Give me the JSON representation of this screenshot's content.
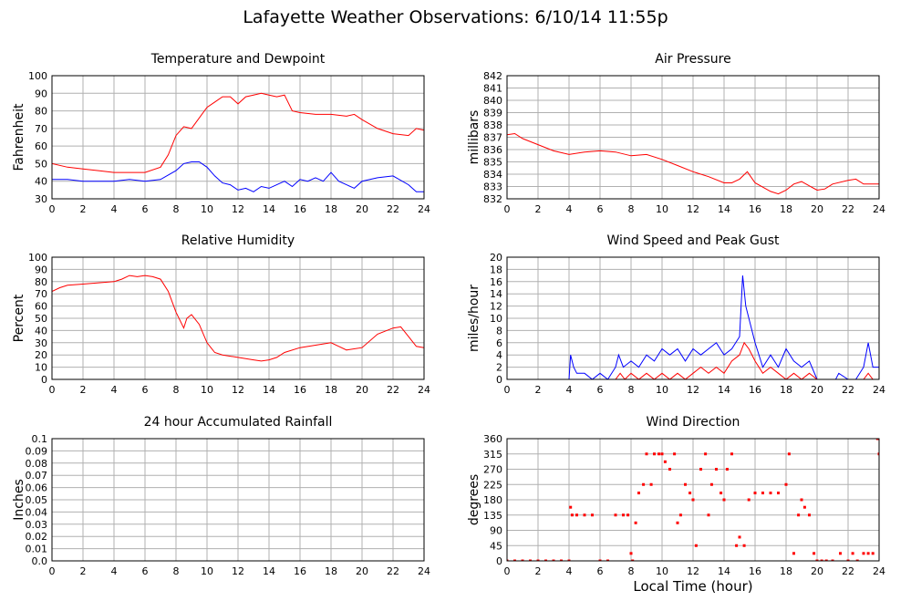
{
  "title": "Lafayette Weather Observations: 6/10/14 11:55p",
  "x_axis_title": "Local Time (hour)",
  "colors": {
    "red": "#ff0000",
    "blue": "#0000ff",
    "grid": "#b0b0b0",
    "axis": "#000000"
  },
  "chart_data": [
    {
      "id": "temp",
      "type": "line",
      "title": "Temperature and Dewpoint",
      "ylabel": "Fahrenheit",
      "xlim": [
        0,
        24
      ],
      "ylim": [
        30,
        100
      ],
      "xticks": [
        "0",
        "2",
        "4",
        "6",
        "8",
        "10",
        "12",
        "14",
        "16",
        "18",
        "20",
        "22",
        "24"
      ],
      "yticks": [
        "30",
        "40",
        "50",
        "60",
        "70",
        "80",
        "90",
        "100"
      ],
      "grid": true,
      "series": [
        {
          "color": "red",
          "x": [
            0,
            1,
            2,
            3,
            4,
            5,
            6,
            7,
            7.5,
            8,
            8.5,
            9,
            9.5,
            10,
            10.5,
            11,
            11.5,
            12,
            12.5,
            13,
            13.5,
            14,
            14.5,
            15,
            15.5,
            16,
            17,
            18,
            19,
            19.5,
            20,
            21,
            22,
            23,
            23.5,
            24
          ],
          "y": [
            50,
            48,
            47,
            46,
            45,
            45,
            45,
            48,
            55,
            66,
            71,
            70,
            76,
            82,
            85,
            88,
            88,
            84,
            88,
            89,
            90,
            89,
            88,
            89,
            80,
            79,
            78,
            78,
            77,
            78,
            75,
            70,
            67,
            66,
            70,
            69
          ]
        },
        {
          "color": "blue",
          "x": [
            0,
            1,
            2,
            3,
            4,
            5,
            6,
            7,
            8,
            8.5,
            9,
            9.5,
            10,
            10.5,
            11,
            11.5,
            12,
            12.5,
            13,
            13.5,
            14,
            14.5,
            15,
            15.5,
            16,
            16.5,
            17,
            17.5,
            18,
            18.5,
            19,
            19.5,
            20,
            21,
            22,
            23,
            23.5,
            24
          ],
          "y": [
            41,
            41,
            40,
            40,
            40,
            41,
            40,
            41,
            46,
            50,
            51,
            51,
            48,
            43,
            39,
            38,
            35,
            36,
            34,
            37,
            36,
            38,
            40,
            37,
            41,
            40,
            42,
            40,
            45,
            40,
            38,
            36,
            40,
            42,
            43,
            38,
            34,
            34
          ]
        }
      ]
    },
    {
      "id": "pressure",
      "type": "line",
      "title": "Air Pressure",
      "ylabel": "millibars",
      "xlim": [
        0,
        24
      ],
      "ylim": [
        832,
        842
      ],
      "xticks": [
        "0",
        "2",
        "4",
        "6",
        "8",
        "10",
        "12",
        "14",
        "16",
        "18",
        "20",
        "22",
        "24"
      ],
      "yticks": [
        "832",
        "833",
        "834",
        "835",
        "836",
        "837",
        "838",
        "839",
        "840",
        "841",
        "842"
      ],
      "grid": true,
      "series": [
        {
          "color": "red",
          "x": [
            0,
            0.5,
            1,
            2,
            3,
            4,
            5,
            6,
            7,
            8,
            9,
            10,
            11,
            12,
            13,
            14,
            14.5,
            15,
            15.5,
            16,
            17,
            17.5,
            18,
            18.5,
            19,
            20,
            20.5,
            21,
            22,
            22.5,
            23,
            24
          ],
          "y": [
            837.2,
            837.3,
            836.9,
            836.4,
            835.9,
            835.6,
            835.8,
            835.9,
            835.8,
            835.5,
            835.6,
            835.2,
            834.7,
            834.2,
            833.8,
            833.3,
            833.3,
            833.6,
            834.2,
            833.3,
            832.6,
            832.4,
            832.7,
            833.2,
            833.4,
            832.7,
            832.8,
            833.2,
            833.5,
            833.6,
            833.2,
            833.2
          ]
        }
      ]
    },
    {
      "id": "humidity",
      "type": "line",
      "title": "Relative Humidity",
      "ylabel": "Percent",
      "xlim": [
        0,
        24
      ],
      "ylim": [
        0,
        100
      ],
      "xticks": [
        "0",
        "2",
        "4",
        "6",
        "8",
        "10",
        "12",
        "14",
        "16",
        "18",
        "20",
        "22",
        "24"
      ],
      "yticks": [
        "0",
        "10",
        "20",
        "30",
        "40",
        "50",
        "60",
        "70",
        "80",
        "90",
        "100"
      ],
      "grid": true,
      "series": [
        {
          "color": "red",
          "x": [
            0,
            0.5,
            1,
            2,
            3,
            4,
            4.5,
            5,
            5.5,
            6,
            6.5,
            7,
            7.5,
            8,
            8.5,
            8.7,
            9,
            9.5,
            10,
            10.5,
            11,
            12,
            13,
            13.5,
            14,
            14.5,
            15,
            16,
            17,
            18,
            18.5,
            19,
            20,
            21,
            22,
            22.5,
            23,
            23.5,
            24
          ],
          "y": [
            72,
            75,
            77,
            78,
            79,
            80,
            82,
            85,
            84,
            85,
            84,
            82,
            72,
            55,
            42,
            50,
            53,
            45,
            30,
            22,
            20,
            18,
            16,
            15,
            16,
            18,
            22,
            26,
            28,
            30,
            27,
            24,
            26,
            37,
            42,
            43,
            35,
            27,
            26
          ]
        }
      ]
    },
    {
      "id": "wind",
      "type": "line",
      "title": "Wind Speed and Peak Gust",
      "ylabel": "miles/hour",
      "xlim": [
        0,
        24
      ],
      "ylim": [
        0,
        20
      ],
      "xticks": [
        "0",
        "2",
        "4",
        "6",
        "8",
        "10",
        "12",
        "14",
        "16",
        "18",
        "20",
        "22",
        "24"
      ],
      "yticks": [
        "0",
        "2",
        "4",
        "6",
        "8",
        "10",
        "12",
        "14",
        "16",
        "18",
        "20"
      ],
      "grid": true,
      "series": [
        {
          "color": "blue",
          "x": [
            0,
            4,
            4.1,
            4.3,
            4.5,
            5,
            5.5,
            6,
            6.5,
            7,
            7.2,
            7.5,
            8,
            8.5,
            9,
            9.5,
            10,
            10.5,
            11,
            11.5,
            12,
            12.5,
            13,
            13.5,
            14,
            14.5,
            15,
            15.2,
            15.4,
            15.6,
            16,
            16.5,
            17,
            17.5,
            18,
            18.5,
            19,
            19.5,
            20,
            21.2,
            21.4,
            22,
            22.5,
            23,
            23.3,
            23.6,
            24
          ],
          "y": [
            0,
            0,
            4,
            2,
            1,
            1,
            0,
            1,
            0,
            2,
            4,
            2,
            3,
            2,
            4,
            3,
            5,
            4,
            5,
            3,
            5,
            4,
            5,
            6,
            4,
            5,
            7,
            17,
            12,
            10,
            6,
            2,
            4,
            2,
            5,
            3,
            2,
            3,
            0,
            0,
            1,
            0,
            0,
            2,
            6,
            2,
            2
          ]
        },
        {
          "color": "red",
          "x": [
            0,
            7,
            7.3,
            7.6,
            8,
            8.5,
            9,
            9.5,
            10,
            10.5,
            11,
            11.5,
            12,
            12.5,
            13,
            13.5,
            14,
            14.5,
            15,
            15.3,
            15.6,
            16,
            16.5,
            17,
            17.5,
            18,
            18.5,
            19,
            19.5,
            20,
            23,
            23.3,
            23.6,
            24
          ],
          "y": [
            0,
            0,
            1,
            0,
            1,
            0,
            1,
            0,
            1,
            0,
            1,
            0,
            1,
            2,
            1,
            2,
            1,
            3,
            4,
            6,
            5,
            3,
            1,
            2,
            1,
            0,
            1,
            0,
            1,
            0,
            0,
            1,
            0,
            0
          ]
        }
      ]
    },
    {
      "id": "rain",
      "type": "line",
      "title": "24 hour Accumulated Rainfall",
      "ylabel": "Inches",
      "xlim": [
        0,
        24
      ],
      "ylim": [
        0,
        0.1
      ],
      "xticks": [
        "0",
        "2",
        "4",
        "6",
        "8",
        "10",
        "12",
        "14",
        "16",
        "18",
        "20",
        "22",
        "24"
      ],
      "yticks": [
        "0.0",
        "0.01",
        "0.02",
        "0.03",
        "0.04",
        "0.05",
        "0.06",
        "0.07",
        "0.08",
        "0.09",
        "0.1"
      ],
      "grid": true,
      "series": [
        {
          "color": "red",
          "x": [
            0,
            24
          ],
          "y": [
            0,
            0
          ]
        }
      ]
    },
    {
      "id": "direction",
      "type": "scatter",
      "title": "Wind Direction",
      "ylabel": "degrees",
      "xlim": [
        0,
        24
      ],
      "ylim": [
        0,
        360
      ],
      "xticks": [
        "0",
        "2",
        "4",
        "6",
        "8",
        "10",
        "12",
        "14",
        "16",
        "18",
        "20",
        "22",
        "24"
      ],
      "yticks": [
        "0",
        "45",
        "90",
        "135",
        "180",
        "225",
        "270",
        "315",
        "360"
      ],
      "grid": true,
      "series": [
        {
          "color": "red",
          "x": [
            0,
            0.5,
            1,
            1.5,
            2,
            2.5,
            3,
            3.5,
            4,
            4.1,
            4.2,
            4.5,
            5,
            5.5,
            6,
            6.5,
            7,
            7.5,
            7.8,
            8,
            8.1,
            8.3,
            8.5,
            8.8,
            9,
            9.3,
            9.5,
            9.8,
            10,
            10.2,
            10.5,
            10.8,
            11,
            11.2,
            11.5,
            11.8,
            12,
            12.2,
            12.5,
            12.8,
            13,
            13.2,
            13.5,
            13.8,
            14,
            14.2,
            14.5,
            14.8,
            15,
            15.3,
            15.6,
            16,
            16.5,
            17,
            17.5,
            18,
            18.2,
            18.5,
            18.8,
            19,
            19.2,
            19.5,
            19.8,
            20,
            20.3,
            20.6,
            21,
            21.5,
            22,
            22.3,
            22.6,
            23,
            23.3,
            23.6,
            23.9,
            24
          ],
          "y": [
            0,
            0,
            0,
            0,
            0,
            0,
            0,
            0,
            0,
            158,
            135,
            135,
            135,
            135,
            0,
            0,
            135,
            135,
            135,
            22,
            0,
            112,
            200,
            225,
            315,
            225,
            315,
            315,
            315,
            292,
            270,
            315,
            112,
            135,
            225,
            200,
            180,
            45,
            270,
            315,
            135,
            225,
            270,
            200,
            180,
            270,
            315,
            45,
            70,
            45,
            180,
            200,
            200,
            200,
            200,
            225,
            315,
            22,
            135,
            180,
            158,
            135,
            22,
            0,
            0,
            0,
            0,
            22,
            0,
            22,
            0,
            22,
            22,
            22,
            360,
            315
          ]
        }
      ]
    }
  ]
}
